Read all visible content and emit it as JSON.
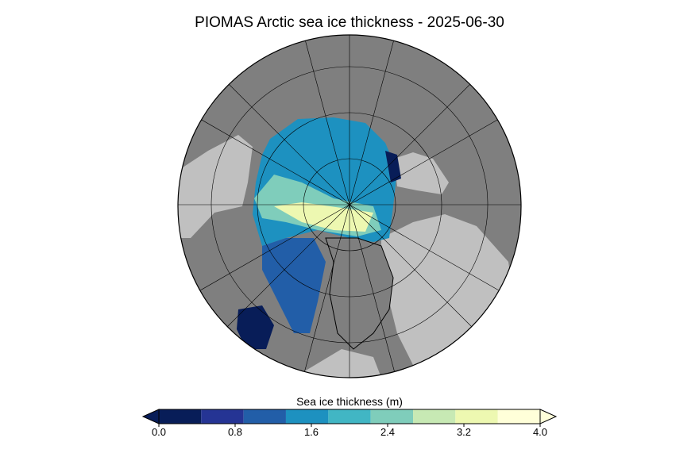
{
  "title": "PIOMAS Arctic sea ice thickness - 2025-06-30",
  "colorbar": {
    "label": "Sea ice thickness (m)",
    "bins": [
      0,
      0.444,
      0.889,
      1.333,
      1.778,
      2.222,
      2.667,
      3.111,
      3.556,
      4
    ],
    "colors": [
      "#081d58",
      "#253494",
      "#225ea8",
      "#1d91c0",
      "#41b6c4",
      "#7fcdbb",
      "#c7e9b4",
      "#edf8b1",
      "#ffffd9"
    ],
    "extend": "both",
    "ticks": [
      {
        "value": 0,
        "label": "0.0"
      },
      {
        "value": 0.8,
        "label": "0.8"
      },
      {
        "value": 1.6,
        "label": "1.6"
      },
      {
        "value": 2.4,
        "label": "2.4"
      },
      {
        "value": 3.2,
        "label": "3.2"
      },
      {
        "value": 4,
        "label": "4.0"
      }
    ]
  }
}
